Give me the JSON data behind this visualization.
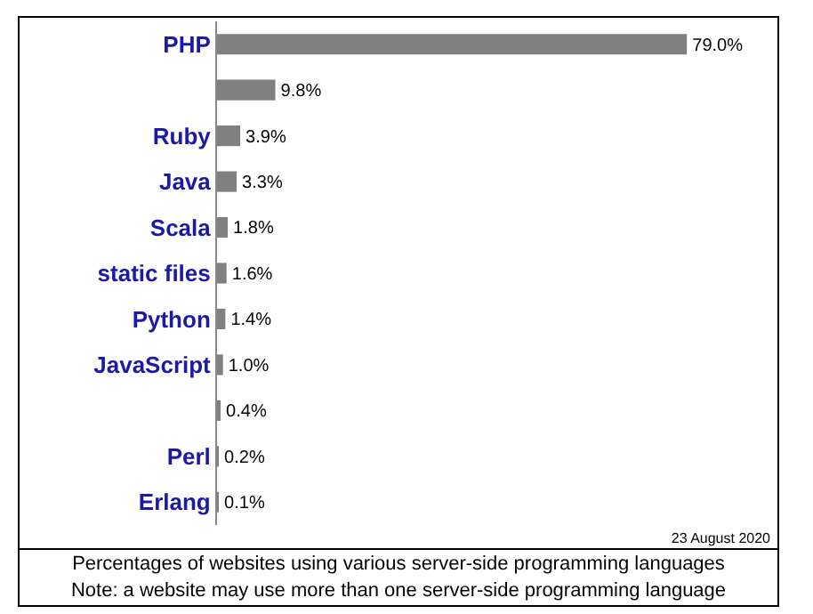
{
  "chart_data": {
    "type": "bar",
    "orientation": "horizontal",
    "tick_labels": "y",
    "categories": [
      "PHP",
      null,
      "Ruby",
      "Java",
      "Scala",
      "static files",
      "Python",
      "JavaScript",
      null,
      "Perl",
      "Erlang"
    ],
    "values": [
      79.0,
      9.8,
      3.9,
      3.3,
      1.8,
      1.6,
      1.4,
      1.0,
      0.4,
      0.2,
      0.1
    ],
    "value_labels": [
      "79.0%",
      "9.8%",
      "3.9%",
      "3.3%",
      "1.8%",
      "1.6%",
      "1.4%",
      "1.0%",
      "0.4%",
      "0.2%",
      "0.1%"
    ],
    "color": "#808080",
    "annotations": [
      "23 August 2020",
      "Percentages of websites using various server-side programming languages",
      "Note: a website may use more than one server-side programming language"
    ]
  }
}
